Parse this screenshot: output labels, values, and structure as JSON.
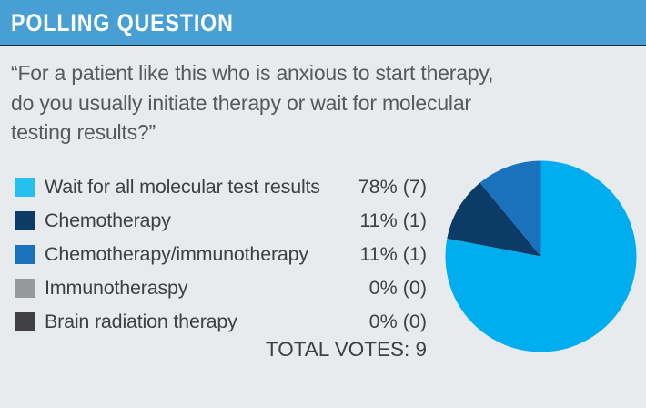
{
  "header": {
    "title": "POLLING QUESTION"
  },
  "question": {
    "text": "“For a patient like this who is anxious to start therapy,\ndo you usually initiate therapy or wait for molecular\ntesting results?”"
  },
  "legend": {
    "items": [
      {
        "label": "Wait for all molecular test results",
        "value": "78% (7)",
        "color": "#24C1F0"
      },
      {
        "label": "Chemotherapy",
        "value": "11% (1)",
        "color": "#0C3B68"
      },
      {
        "label": "Chemotherapy/immunotherapy",
        "value": "11% (1)",
        "color": "#1B72BC"
      },
      {
        "label": "Immunotheraspy",
        "value": "0% (0)",
        "color": "#96989B"
      },
      {
        "label": "Brain radiation therapy",
        "value": "0% (0)",
        "color": "#414042"
      }
    ],
    "total_label": "TOTAL VOTES: 9"
  },
  "chart_data": {
    "type": "pie",
    "title": "POLLING QUESTION",
    "categories": [
      "Wait for all molecular test results",
      "Chemotherapy",
      "Chemotherapy/immunotherapy",
      "Immunotheraspy",
      "Brain radiation therapy"
    ],
    "values": [
      78,
      11,
      11,
      0,
      0
    ],
    "counts": [
      7,
      1,
      1,
      0,
      0
    ],
    "total_votes": 9,
    "colors": [
      "#00AEEF",
      "#0C3B68",
      "#1B72BC",
      "#96989B",
      "#414042"
    ],
    "start_angle_deg": 0,
    "direction": "clockwise",
    "legend_position": "left"
  },
  "colors": {
    "page_bg": "#E7EBEE",
    "header_bg": "#479FD3",
    "header_text": "#FFFFFF",
    "header_border": "#1E2F3A",
    "question_text": "#58595B",
    "legend_text": "#3F4042"
  }
}
